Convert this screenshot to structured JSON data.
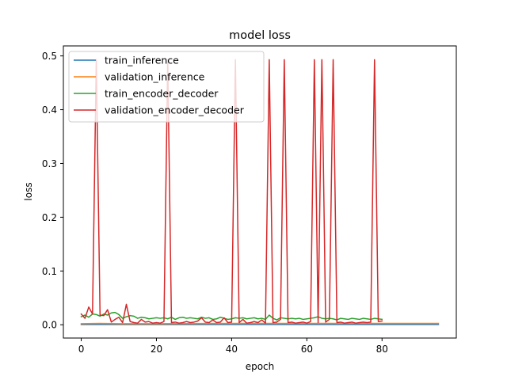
{
  "chart_data": {
    "type": "line",
    "title": "model loss",
    "xlabel": "epoch",
    "ylabel": "loss",
    "xlim": [
      -4.75,
      99.75
    ],
    "ylim": [
      -0.0247,
      0.5186
    ],
    "xticks": [
      0,
      20,
      40,
      60,
      80
    ],
    "yticks": [
      0.0,
      0.1,
      0.2,
      0.3,
      0.4,
      0.5
    ],
    "ytick_labels": [
      "0.0",
      "0.1",
      "0.2",
      "0.3",
      "0.4",
      "0.5"
    ],
    "grid": false,
    "legend_position": "top-left",
    "series": [
      {
        "name": "train_inference",
        "color": "#1f77b4",
        "x": [
          0,
          95
        ],
        "y": [
          0.0005,
          0.0005
        ]
      },
      {
        "name": "validation_inference",
        "color": "#ff7f0e",
        "x": [
          0,
          5,
          10,
          20,
          40,
          60,
          80,
          95
        ],
        "y": [
          0.002,
          0.0025,
          0.002,
          0.002,
          0.0025,
          0.0025,
          0.0025,
          0.0025
        ]
      },
      {
        "name": "train_encoder_decoder",
        "color": "#2ca02c",
        "x": [
          0,
          1,
          2,
          3,
          4,
          5,
          6,
          7,
          8,
          9,
          10,
          11,
          12,
          13,
          14,
          15,
          16,
          17,
          18,
          19,
          20,
          21,
          22,
          23,
          24,
          25,
          26,
          27,
          28,
          29,
          30,
          31,
          32,
          33,
          34,
          35,
          36,
          37,
          38,
          39,
          40,
          41,
          42,
          43,
          44,
          45,
          46,
          47,
          48,
          49,
          50,
          51,
          52,
          53,
          54,
          55,
          56,
          57,
          58,
          59,
          60,
          61,
          62,
          63,
          64,
          65,
          66,
          67,
          68,
          69,
          70,
          71,
          72,
          73,
          74,
          75,
          76,
          77,
          78,
          79,
          80
        ],
        "y": [
          0.015,
          0.018,
          0.014,
          0.02,
          0.019,
          0.016,
          0.02,
          0.018,
          0.022,
          0.023,
          0.019,
          0.012,
          0.015,
          0.017,
          0.016,
          0.012,
          0.014,
          0.013,
          0.011,
          0.012,
          0.013,
          0.012,
          0.013,
          0.011,
          0.014,
          0.01,
          0.013,
          0.014,
          0.012,
          0.013,
          0.012,
          0.011,
          0.014,
          0.012,
          0.013,
          0.01,
          0.011,
          0.014,
          0.012,
          0.01,
          0.011,
          0.013,
          0.012,
          0.013,
          0.011,
          0.012,
          0.013,
          0.011,
          0.012,
          0.01,
          0.018,
          0.012,
          0.009,
          0.013,
          0.012,
          0.011,
          0.012,
          0.011,
          0.012,
          0.01,
          0.011,
          0.012,
          0.013,
          0.015,
          0.012,
          0.011,
          0.012,
          0.011,
          0.009,
          0.012,
          0.011,
          0.01,
          0.012,
          0.011,
          0.01,
          0.012,
          0.011,
          0.01,
          0.012,
          0.011,
          0.01
        ]
      },
      {
        "name": "validation_encoder_decoder",
        "color": "#d62728",
        "x": [
          0,
          1,
          2,
          3,
          4,
          5,
          6,
          7,
          8,
          9,
          10,
          11,
          12,
          13,
          14,
          15,
          16,
          17,
          18,
          19,
          20,
          21,
          22,
          23,
          24,
          25,
          26,
          27,
          28,
          29,
          30,
          31,
          32,
          33,
          34,
          35,
          36,
          37,
          38,
          39,
          40,
          41,
          42,
          43,
          44,
          45,
          46,
          47,
          48,
          49,
          50,
          51,
          52,
          53,
          54,
          55,
          56,
          57,
          58,
          59,
          60,
          61,
          62,
          63,
          64,
          65,
          66,
          67,
          68,
          69,
          70,
          71,
          72,
          73,
          74,
          75,
          76,
          77,
          78,
          79,
          80
        ],
        "y": [
          0.02,
          0.012,
          0.033,
          0.02,
          0.493,
          0.018,
          0.017,
          0.028,
          0.005,
          0.01,
          0.014,
          0.004,
          0.038,
          0.006,
          0.004,
          0.003,
          0.01,
          0.005,
          0.006,
          0.003,
          0.004,
          0.003,
          0.006,
          0.493,
          0.004,
          0.005,
          0.003,
          0.004,
          0.006,
          0.004,
          0.005,
          0.007,
          0.013,
          0.005,
          0.004,
          0.009,
          0.004,
          0.005,
          0.013,
          0.004,
          0.005,
          0.493,
          0.004,
          0.01,
          0.003,
          0.004,
          0.006,
          0.004,
          0.009,
          0.003,
          0.493,
          0.004,
          0.005,
          0.01,
          0.493,
          0.004,
          0.005,
          0.003,
          0.004,
          0.005,
          0.003,
          0.006,
          0.493,
          0.004,
          0.493,
          0.005,
          0.01,
          0.493,
          0.004,
          0.005,
          0.003,
          0.004,
          0.005,
          0.003,
          0.004,
          0.005,
          0.004,
          0.005,
          0.493,
          0.006,
          0.007
        ]
      }
    ]
  }
}
